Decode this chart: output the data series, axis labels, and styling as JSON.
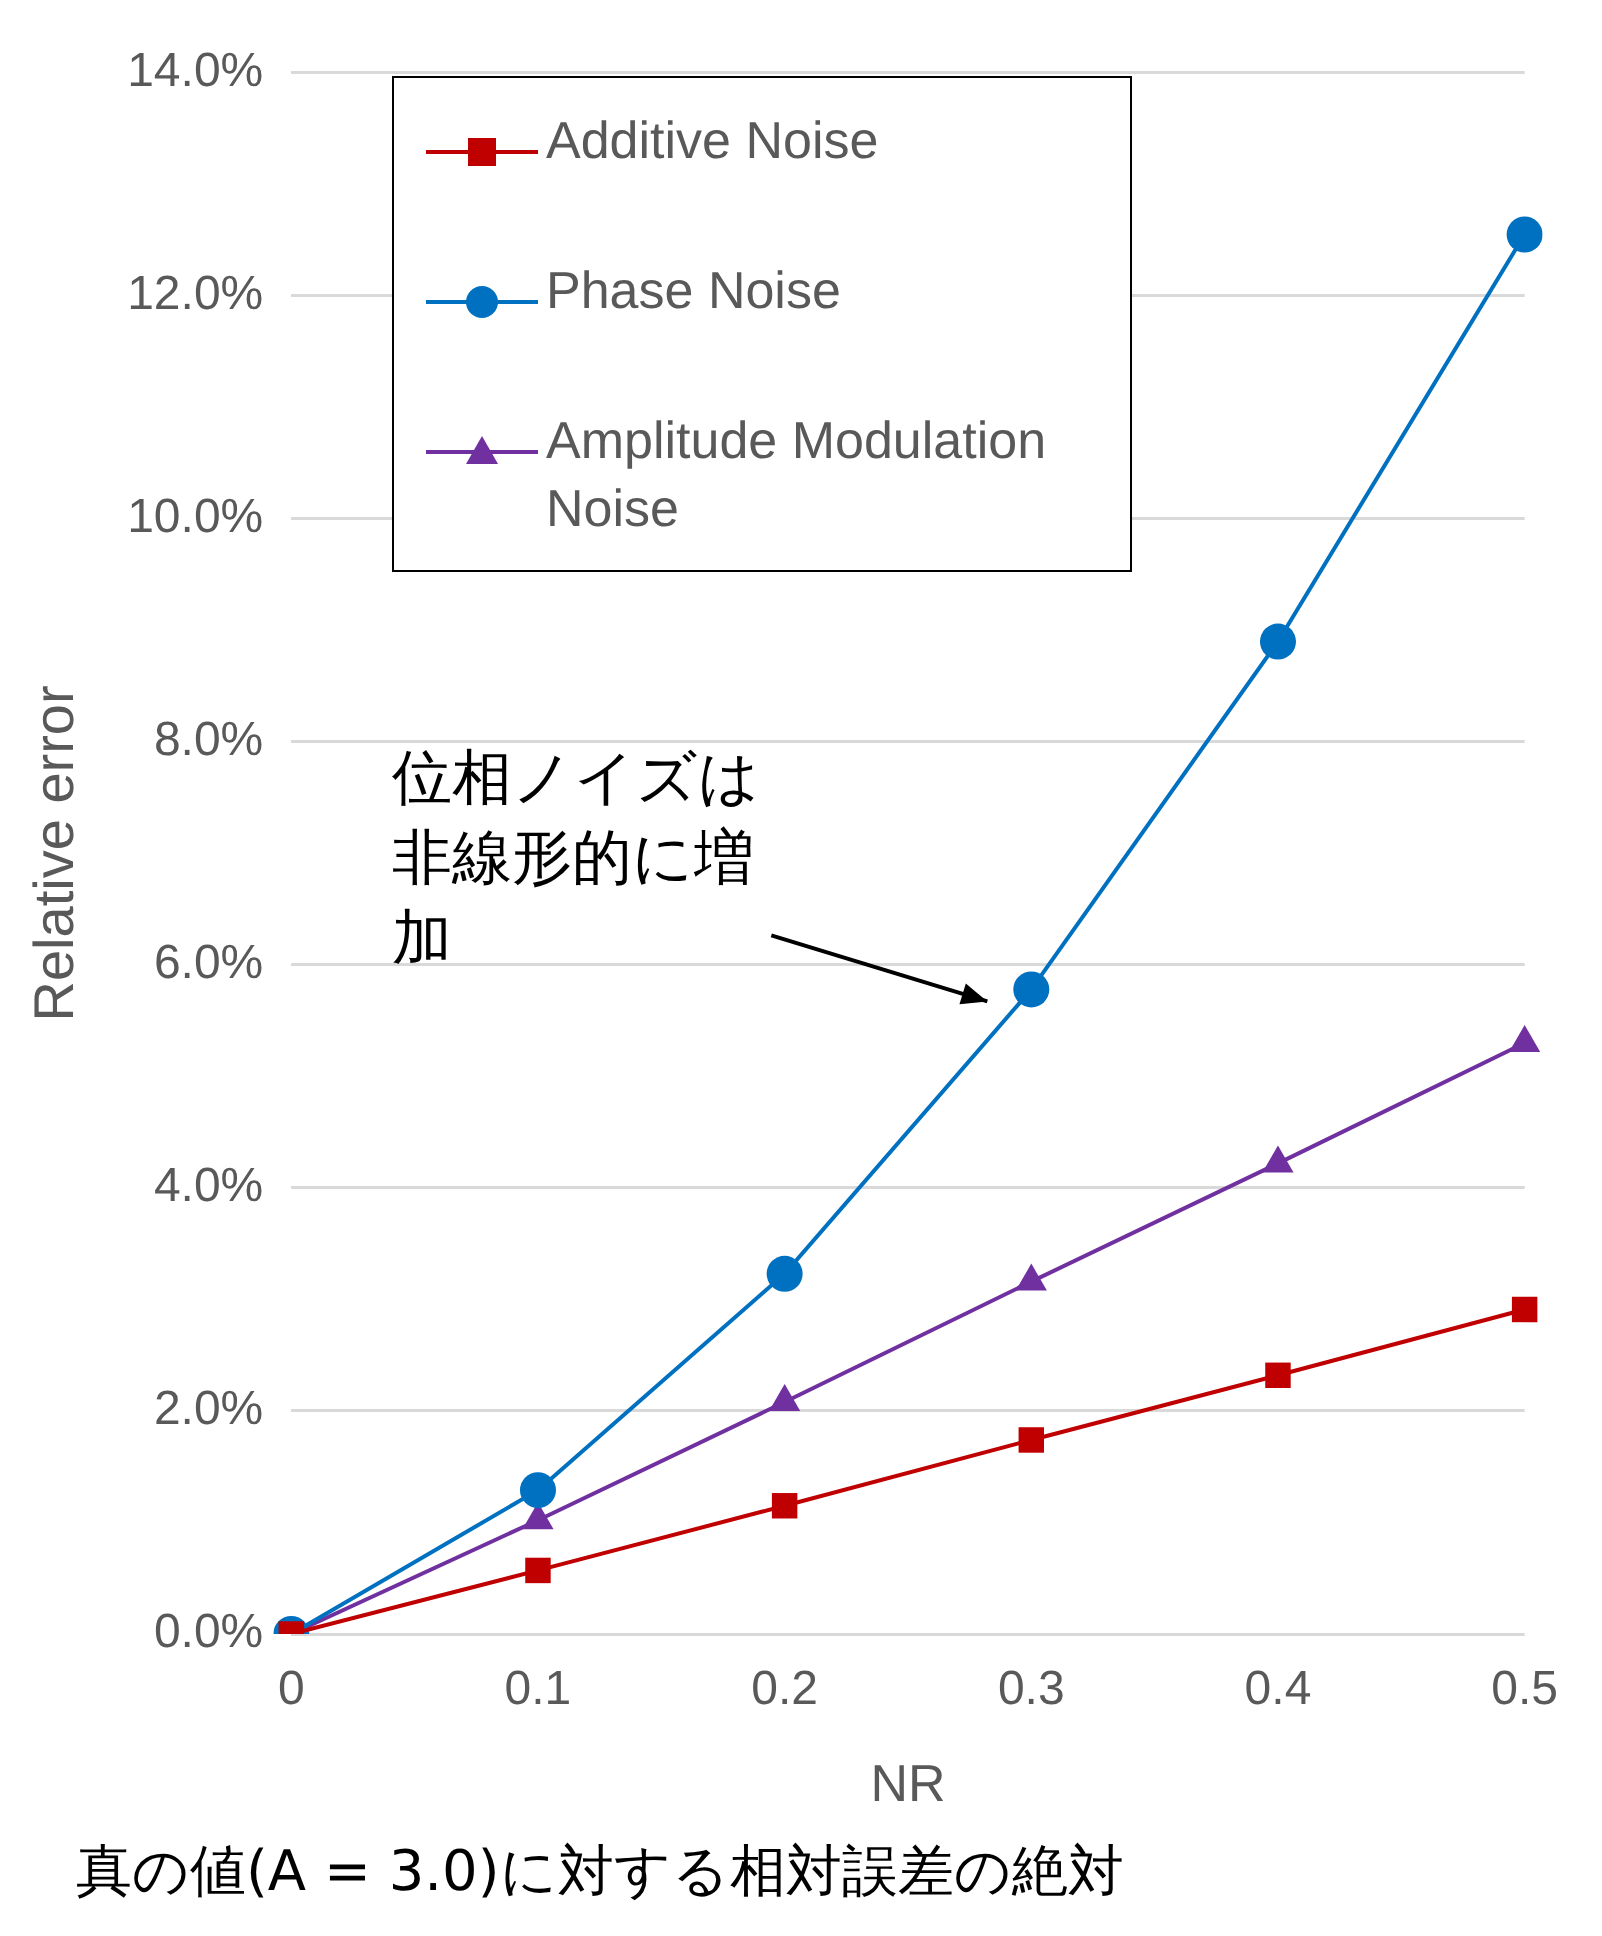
{
  "chart_data": {
    "type": "line",
    "xlabel": "NR",
    "ylabel": "Relative error",
    "categories": [
      "0",
      "0.1",
      "0.2",
      "0.3",
      "0.4",
      "0.5"
    ],
    "series": [
      {
        "name": "Additive Noise",
        "color": "#c00000",
        "marker": "square",
        "values": [
          0,
          0.57,
          1.15,
          1.74,
          2.32,
          2.91
        ]
      },
      {
        "name": "Phase Noise",
        "color": "#0070c0",
        "marker": "circle",
        "values": [
          0,
          1.29,
          3.23,
          5.78,
          8.9,
          12.55
        ]
      },
      {
        "name": "Amplitude Modulation Noise",
        "color": "#7030a0",
        "marker": "triangle",
        "values": [
          0,
          1.02,
          2.08,
          3.16,
          4.22,
          5.3
        ]
      }
    ],
    "ylim": [
      0,
      14
    ],
    "yticks": [
      {
        "value": 0,
        "label": "0.0%"
      },
      {
        "value": 2,
        "label": "2.0%"
      },
      {
        "value": 4,
        "label": "4.0%"
      },
      {
        "value": 6,
        "label": "6.0%"
      },
      {
        "value": 8,
        "label": "8.0%"
      },
      {
        "value": 10,
        "label": "10.0%"
      },
      {
        "value": 12,
        "label": "12.0%"
      },
      {
        "value": 14,
        "label": "14.0%"
      }
    ],
    "grid": "y",
    "legend": "top left",
    "line_style": "solid",
    "annotations": [
      "位相ノイズは非線形的に増加",
      "真の値(A = 3.0)に対する相対誤差の絶対"
    ]
  }
}
